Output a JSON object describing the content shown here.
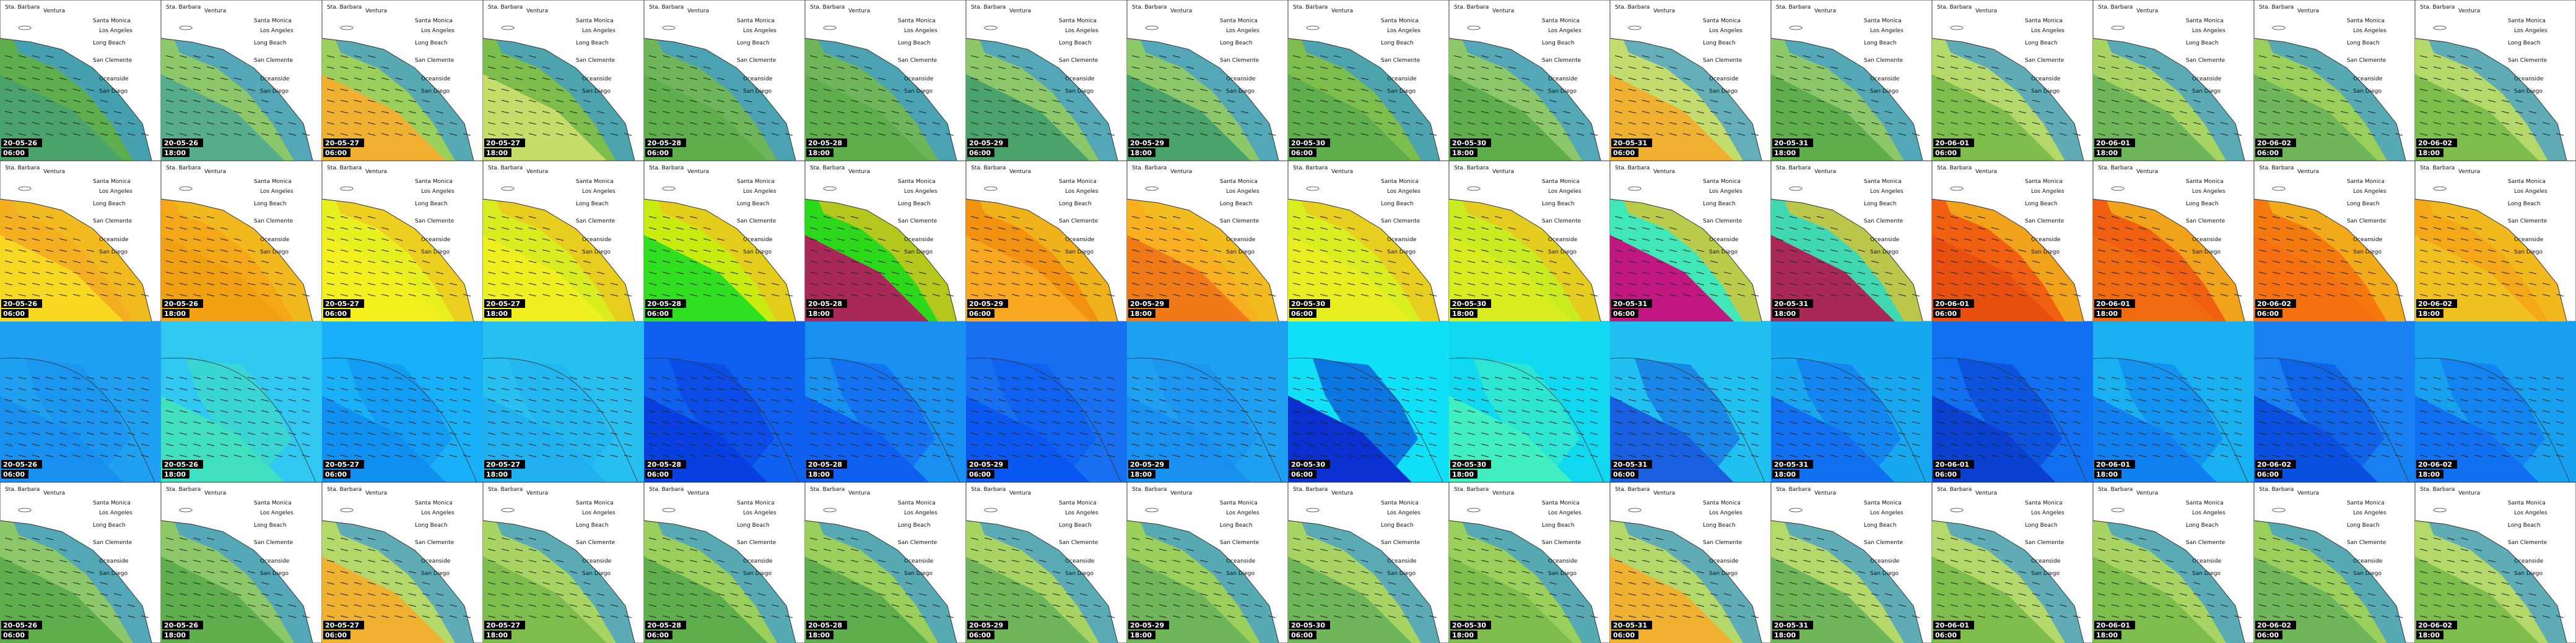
{
  "places": [
    "Sta. Barbara",
    "Ventura",
    "Santa Monica",
    "Los Angeles",
    "Long Beach",
    "San Clemente",
    "Oceanside",
    "San Diego"
  ],
  "columns": [
    {
      "date": "20-05-26",
      "time": "06:00"
    },
    {
      "date": "20-05-26",
      "time": "18:00"
    },
    {
      "date": "20-05-27",
      "time": "06:00"
    },
    {
      "date": "20-05-27",
      "time": "18:00"
    },
    {
      "date": "20-05-28",
      "time": "06:00"
    },
    {
      "date": "20-05-28",
      "time": "18:00"
    },
    {
      "date": "20-05-29",
      "time": "06:00"
    },
    {
      "date": "20-05-29",
      "time": "18:00"
    },
    {
      "date": "20-05-30",
      "time": "06:00"
    },
    {
      "date": "20-05-30",
      "time": "18:00"
    },
    {
      "date": "20-05-31",
      "time": "06:00"
    },
    {
      "date": "20-05-31",
      "time": "18:00"
    },
    {
      "date": "20-06-01",
      "time": "06:00"
    },
    {
      "date": "20-06-01",
      "time": "18:00"
    },
    {
      "date": "20-06-02",
      "time": "06:00"
    },
    {
      "date": "20-06-02",
      "time": "18:00"
    }
  ]
}
